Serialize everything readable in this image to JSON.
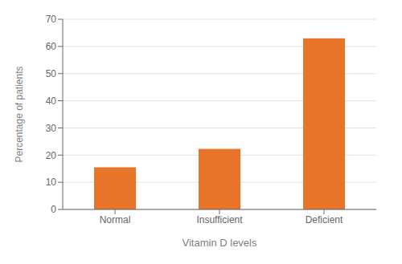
{
  "chart_data": {
    "type": "bar",
    "categories": [
      "Normal",
      "Insufficient",
      "Deficient"
    ],
    "values": [
      15.5,
      22.3,
      63.0
    ],
    "color": "#E8742A",
    "xlabel": "Vitamin D levels",
    "ylabel": "Percentage of patients",
    "ylim": [
      0,
      70
    ],
    "yticks": [
      0,
      10,
      20,
      30,
      40,
      50,
      60,
      70
    ],
    "grid": true
  }
}
